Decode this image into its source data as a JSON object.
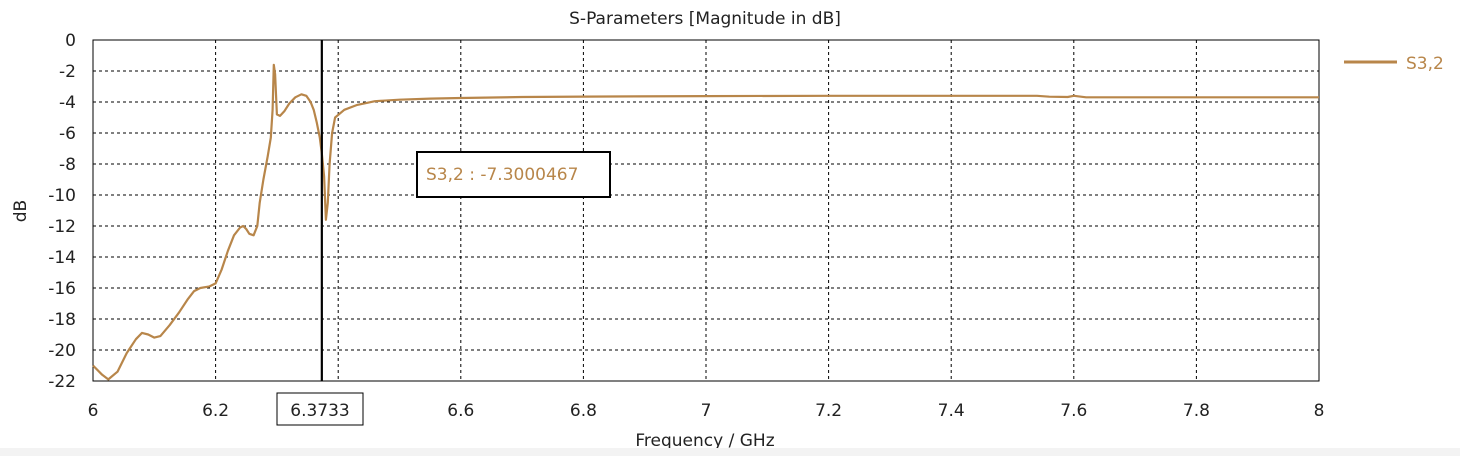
{
  "chart_data": {
    "type": "line",
    "title": "S-Parameters [Magnitude in dB]",
    "xlabel": "Frequency / GHz",
    "ylabel": "dB",
    "xlim": [
      6,
      8
    ],
    "ylim": [
      -22,
      0
    ],
    "xticks": [
      "6",
      "6.2",
      "6.4",
      "6.6",
      "6.8",
      "7",
      "7.2",
      "7.4",
      "7.6",
      "7.8",
      "8"
    ],
    "yticks": [
      "0",
      "-2",
      "-4",
      "-6",
      "-8",
      "-10",
      "-12",
      "-14",
      "-16",
      "-18",
      "-20",
      "-22"
    ],
    "grid": true,
    "legend_position": "top-right",
    "series": [
      {
        "name": "S3,2",
        "color": "#b8864a",
        "points": [
          [
            6.0,
            -21.0
          ],
          [
            6.015,
            -21.6
          ],
          [
            6.025,
            -21.9
          ],
          [
            6.04,
            -21.4
          ],
          [
            6.055,
            -20.2
          ],
          [
            6.07,
            -19.3
          ],
          [
            6.08,
            -18.9
          ],
          [
            6.09,
            -19.0
          ],
          [
            6.1,
            -19.2
          ],
          [
            6.11,
            -19.1
          ],
          [
            6.125,
            -18.4
          ],
          [
            6.14,
            -17.6
          ],
          [
            6.155,
            -16.7
          ],
          [
            6.165,
            -16.2
          ],
          [
            6.175,
            -16.0
          ],
          [
            6.19,
            -15.9
          ],
          [
            6.2,
            -15.7
          ],
          [
            6.21,
            -14.8
          ],
          [
            6.22,
            -13.6
          ],
          [
            6.23,
            -12.6
          ],
          [
            6.24,
            -12.1
          ],
          [
            6.245,
            -12.0
          ],
          [
            6.25,
            -12.2
          ],
          [
            6.255,
            -12.5
          ],
          [
            6.262,
            -12.6
          ],
          [
            6.268,
            -12.0
          ],
          [
            6.272,
            -10.5
          ],
          [
            6.278,
            -9.0
          ],
          [
            6.285,
            -7.5
          ],
          [
            6.29,
            -6.3
          ],
          [
            6.293,
            -4.5
          ],
          [
            6.295,
            -1.6
          ],
          [
            6.297,
            -2.2
          ],
          [
            6.3,
            -4.8
          ],
          [
            6.305,
            -4.9
          ],
          [
            6.312,
            -4.6
          ],
          [
            6.32,
            -4.1
          ],
          [
            6.33,
            -3.7
          ],
          [
            6.34,
            -3.5
          ],
          [
            6.348,
            -3.6
          ],
          [
            6.355,
            -4.0
          ],
          [
            6.36,
            -4.5
          ],
          [
            6.365,
            -5.3
          ],
          [
            6.37,
            -6.3
          ],
          [
            6.3733,
            -7.3
          ],
          [
            6.377,
            -8.8
          ],
          [
            6.38,
            -11.6
          ],
          [
            6.383,
            -10.5
          ],
          [
            6.386,
            -8.0
          ],
          [
            6.39,
            -6.0
          ],
          [
            6.395,
            -5.0
          ],
          [
            6.41,
            -4.5
          ],
          [
            6.43,
            -4.2
          ],
          [
            6.46,
            -3.95
          ],
          [
            6.5,
            -3.85
          ],
          [
            6.55,
            -3.78
          ],
          [
            6.6,
            -3.74
          ],
          [
            6.7,
            -3.68
          ],
          [
            6.8,
            -3.65
          ],
          [
            7.0,
            -3.62
          ],
          [
            7.2,
            -3.6
          ],
          [
            7.4,
            -3.6
          ],
          [
            7.54,
            -3.6
          ],
          [
            7.56,
            -3.66
          ],
          [
            7.59,
            -3.68
          ],
          [
            7.6,
            -3.6
          ],
          [
            7.62,
            -3.7
          ],
          [
            7.8,
            -3.7
          ],
          [
            8.0,
            -3.7
          ]
        ]
      }
    ],
    "marker": {
      "x_label": "6.3733",
      "x": 6.3733,
      "annotation": "S3,2 : -7.3000467"
    }
  }
}
